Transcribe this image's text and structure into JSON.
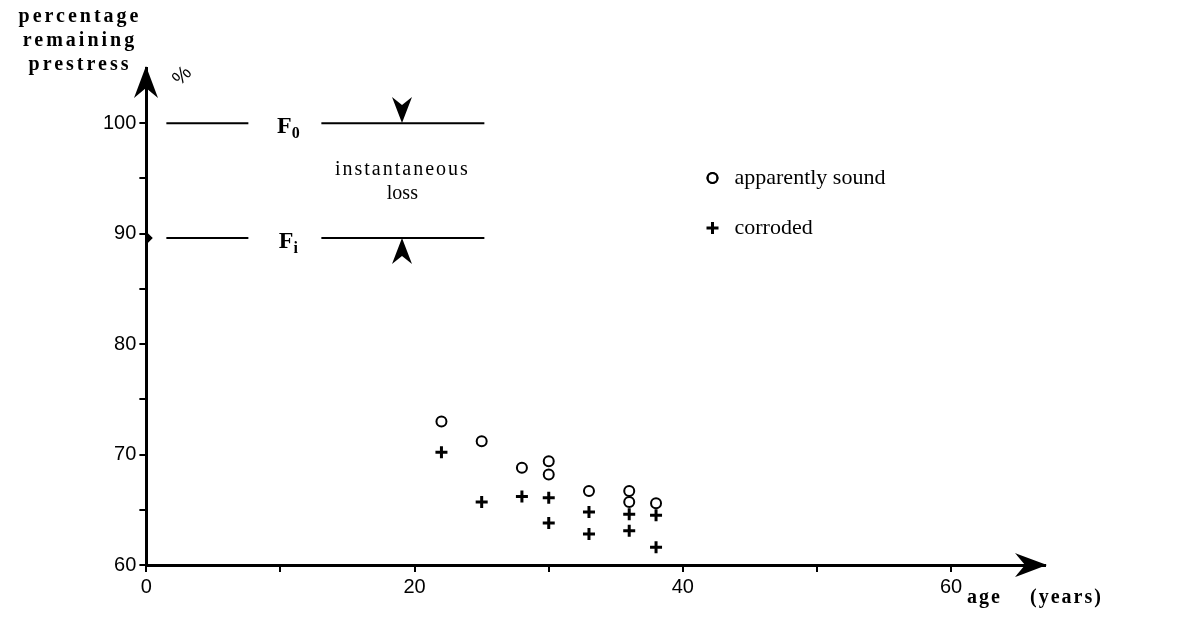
{
  "chart_data": {
    "type": "scatter",
    "xlabel": "age    (years)",
    "ylabel": "percentage remaining prestress",
    "xlim": [
      0,
      67
    ],
    "ylim": [
      60,
      105
    ],
    "xticks": [
      0,
      {
        "value": 10,
        "label": null
      },
      20,
      {
        "value": 30,
        "label": null
      },
      40,
      {
        "value": 50,
        "label": null
      },
      60
    ],
    "yticks": [
      60,
      {
        "value": 65,
        "label": null
      },
      70,
      {
        "value": 75,
        "label": null
      },
      80,
      {
        "value": 85,
        "label": null
      },
      90,
      {
        "value": 95,
        "label": null
      },
      100
    ],
    "legend": "top right",
    "series": [
      {
        "name": "apparently sound",
        "color": "#000000",
        "marker": "circle",
        "x": [
          22,
          25,
          28,
          30,
          30,
          33,
          36,
          36,
          38
        ],
        "values": [
          73.0,
          71.2,
          68.8,
          69.4,
          68.2,
          66.7,
          66.7,
          65.7,
          65.6
        ]
      },
      {
        "name": "corroded",
        "color": "#000000",
        "marker": "cross",
        "x": [
          22,
          25,
          28,
          30,
          30,
          33,
          33,
          36,
          36,
          38,
          38
        ],
        "values": [
          70.2,
          65.7,
          66.2,
          66.1,
          63.8,
          64.8,
          62.8,
          64.6,
          63.1,
          64.5,
          61.6
        ]
      },
      {
        "color": "#000000",
        "marker": "diamond",
        "x": [
          0
        ],
        "values": [
          89.6
        ]
      }
    ],
    "ref_lines": [
      {
        "axis": "y",
        "value": 100,
        "label": "F$_{0}$"
      },
      {
        "axis": "y",
        "value": 89.6,
        "label": "F$_{i}$"
      }
    ],
    "annotations": [
      "instantaneous loss",
      "%"
    ]
  }
}
